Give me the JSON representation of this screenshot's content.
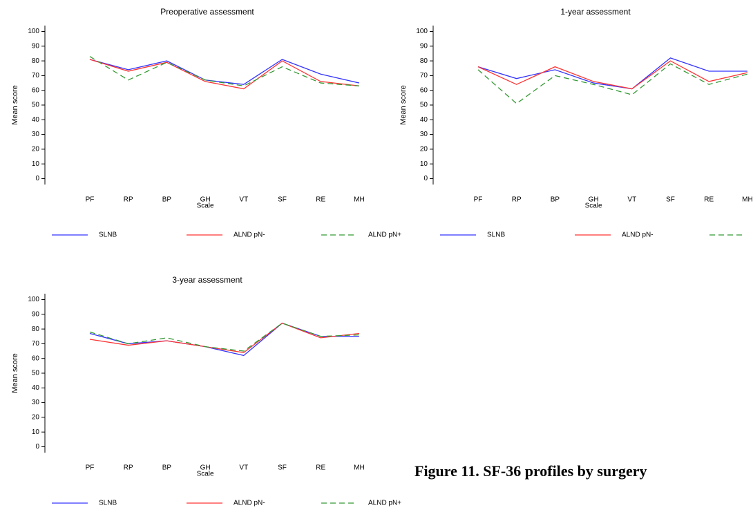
{
  "figure_caption": "Figure 11. SF-36 profiles by surgery",
  "chart_data": [
    {
      "type": "line",
      "title": "Preoperative assessment",
      "x_label": "Scale",
      "y_label": "Mean score",
      "categories": [
        "PF",
        "RP",
        "BP",
        "GH",
        "VT",
        "SF",
        "RE",
        "MH"
      ],
      "ylim": [
        -4,
        104
      ],
      "yticks": [
        0,
        10,
        20,
        30,
        40,
        50,
        60,
        70,
        80,
        90,
        100
      ],
      "series": [
        {
          "name": "SLNB",
          "color": "#3333ff",
          "line_style": "solid",
          "values": [
            81,
            74,
            80,
            67,
            64,
            81,
            71,
            65
          ]
        },
        {
          "name": "ALND pN-",
          "color": "#ff3333",
          "line_style": "solid",
          "values": [
            81,
            73,
            79,
            66,
            61,
            80,
            66,
            63
          ]
        },
        {
          "name": "ALND pN+",
          "color": "#339933",
          "line_style": "dashed",
          "values": [
            83,
            67,
            79,
            67,
            63,
            76,
            65,
            63
          ]
        }
      ]
    },
    {
      "type": "line",
      "title": "1-year assessment",
      "x_label": "Scale",
      "y_label": "Mean score",
      "categories": [
        "PF",
        "RP",
        "BP",
        "GH",
        "VT",
        "SF",
        "RE",
        "MH"
      ],
      "ylim": [
        -4,
        104
      ],
      "yticks": [
        0,
        10,
        20,
        30,
        40,
        50,
        60,
        70,
        80,
        90,
        100
      ],
      "series": [
        {
          "name": "SLNB",
          "color": "#3333ff",
          "line_style": "solid",
          "values": [
            76,
            68,
            74,
            65,
            61,
            82,
            73,
            73
          ]
        },
        {
          "name": "ALND pN-",
          "color": "#ff3333",
          "line_style": "solid",
          "values": [
            76,
            64,
            76,
            66,
            61,
            80,
            66,
            72
          ]
        },
        {
          "name": "ALND pN+",
          "color": "#339933",
          "line_style": "dashed",
          "values": [
            74,
            51,
            70,
            64,
            57,
            78,
            64,
            71
          ]
        }
      ]
    },
    {
      "type": "line",
      "title": "3-year assessment",
      "x_label": "Scale",
      "y_label": "Mean score",
      "categories": [
        "PF",
        "RP",
        "BP",
        "GH",
        "VT",
        "SF",
        "RE",
        "MH"
      ],
      "ylim": [
        -4,
        104
      ],
      "yticks": [
        0,
        10,
        20,
        30,
        40,
        50,
        60,
        70,
        80,
        90,
        100
      ],
      "series": [
        {
          "name": "SLNB",
          "color": "#3333ff",
          "line_style": "solid",
          "values": [
            77,
            70,
            72,
            68,
            62,
            84,
            75,
            75
          ]
        },
        {
          "name": "ALND pN-",
          "color": "#ff3333",
          "line_style": "solid",
          "values": [
            73,
            69,
            72,
            68,
            64,
            84,
            74,
            77
          ]
        },
        {
          "name": "ALND pN+",
          "color": "#339933",
          "line_style": "dashed",
          "values": [
            78,
            70,
            74,
            68,
            65,
            84,
            75,
            76
          ]
        }
      ]
    }
  ]
}
